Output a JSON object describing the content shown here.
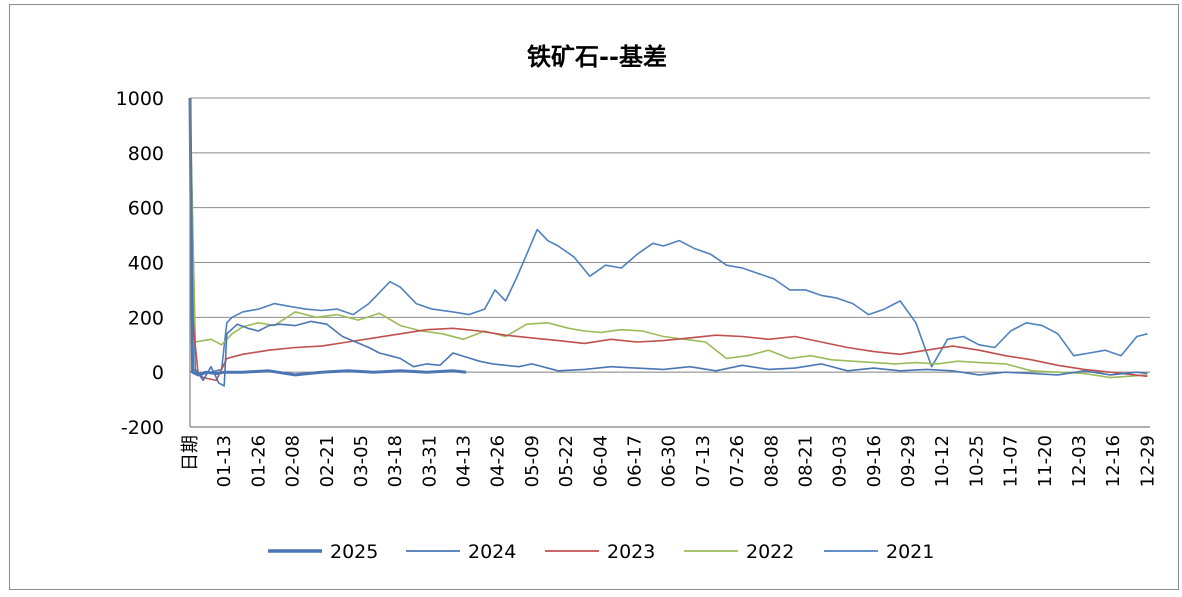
{
  "chart_data": {
    "type": "line",
    "title": "铁矿石--基差",
    "xlabel": "日期",
    "ylabel": "",
    "ylim": [
      -200,
      1000
    ],
    "yticks": [
      1000,
      800,
      600,
      400,
      200,
      0,
      -200
    ],
    "ytick_labels": [
      "1000",
      "800",
      "600",
      "400",
      "200",
      "0",
      "-200"
    ],
    "x_axis_label": "日期",
    "x_range": [
      0,
      365
    ],
    "x_tick_positions": [
      13,
      26,
      39,
      52,
      65,
      78,
      91,
      104,
      117,
      130,
      143,
      156,
      169,
      182,
      195,
      208,
      221,
      234,
      247,
      260,
      273,
      286,
      299,
      312,
      325,
      338,
      351,
      364
    ],
    "categories": [
      "01-13",
      "01-26",
      "02-08",
      "02-21",
      "03-05",
      "03-18",
      "03-31",
      "04-13",
      "04-26",
      "05-09",
      "05-22",
      "06-04",
      "06-17",
      "06-30",
      "07-13",
      "07-26",
      "08-08",
      "08-21",
      "09-03",
      "09-16",
      "09-29",
      "10-12",
      "10-25",
      "11-07",
      "11-20",
      "12-03",
      "12-16",
      "12-29"
    ],
    "grid": true,
    "legend_position": "bottom",
    "series": [
      {
        "name": "2025",
        "color": "#4a77b4",
        "bold": true,
        "x": [
          0,
          1,
          3,
          6,
          10,
          13,
          20,
          30,
          40,
          50,
          60,
          70,
          80,
          90,
          100,
          105
        ],
        "values": [
          1000,
          0,
          -10,
          0,
          -5,
          0,
          0,
          5,
          -10,
          0,
          5,
          0,
          5,
          0,
          5,
          0
        ]
      },
      {
        "name": "2024",
        "color": "#4a77b4",
        "bold": false,
        "x": [
          0,
          2,
          5,
          8,
          11,
          13,
          14,
          18,
          22,
          26,
          30,
          34,
          40,
          46,
          52,
          58,
          63,
          68,
          72,
          76,
          80,
          85,
          90,
          95,
          100,
          105,
          110,
          115,
          120,
          125,
          130,
          140,
          150,
          160,
          170,
          180,
          190,
          200,
          210,
          220,
          230,
          240,
          250,
          260,
          270,
          280,
          290,
          300,
          310,
          320,
          330,
          340,
          350,
          360,
          364
        ],
        "values": [
          0,
          10,
          -30,
          20,
          -40,
          -50,
          140,
          175,
          160,
          150,
          170,
          175,
          170,
          185,
          175,
          130,
          110,
          90,
          70,
          60,
          50,
          20,
          30,
          25,
          70,
          55,
          40,
          30,
          25,
          20,
          30,
          5,
          10,
          20,
          15,
          10,
          20,
          5,
          25,
          10,
          15,
          30,
          5,
          15,
          5,
          10,
          5,
          -10,
          0,
          -5,
          -10,
          5,
          -10,
          0,
          -5
        ]
      },
      {
        "name": "2023",
        "color": "#c0504d",
        "bold": false,
        "x": [
          0,
          1,
          3,
          5,
          10,
          14,
          20,
          30,
          40,
          50,
          60,
          70,
          80,
          90,
          100,
          110,
          120,
          130,
          140,
          150,
          160,
          170,
          180,
          190,
          200,
          210,
          220,
          230,
          240,
          250,
          260,
          270,
          280,
          290,
          300,
          310,
          320,
          330,
          340,
          350,
          364
        ],
        "values": [
          1000,
          200,
          0,
          -20,
          -30,
          50,
          65,
          80,
          90,
          95,
          110,
          125,
          140,
          155,
          160,
          150,
          135,
          125,
          115,
          105,
          120,
          110,
          115,
          125,
          135,
          130,
          120,
          130,
          110,
          90,
          75,
          65,
          80,
          95,
          80,
          60,
          45,
          25,
          10,
          0,
          -15
        ]
      },
      {
        "name": "2022",
        "color": "#9bbb59",
        "bold": false,
        "x": [
          0,
          2,
          5,
          8,
          12,
          16,
          20,
          26,
          32,
          40,
          48,
          56,
          64,
          72,
          80,
          88,
          96,
          104,
          112,
          120,
          128,
          136,
          144,
          150,
          156,
          164,
          172,
          180,
          188,
          196,
          204,
          212,
          220,
          228,
          236,
          244,
          252,
          260,
          268,
          276,
          284,
          292,
          300,
          310,
          320,
          330,
          340,
          350,
          364
        ],
        "values": [
          1000,
          110,
          115,
          120,
          100,
          140,
          165,
          180,
          170,
          220,
          200,
          210,
          190,
          215,
          170,
          150,
          140,
          120,
          150,
          130,
          175,
          180,
          160,
          150,
          145,
          155,
          150,
          130,
          120,
          110,
          50,
          60,
          80,
          50,
          60,
          45,
          40,
          35,
          30,
          35,
          30,
          40,
          35,
          30,
          5,
          0,
          -5,
          -20,
          -10
        ]
      },
      {
        "name": "2021",
        "color": "#4f81bd",
        "bold": false,
        "x": [
          0,
          2,
          4,
          8,
          12,
          14,
          16,
          20,
          26,
          32,
          38,
          44,
          50,
          56,
          62,
          68,
          72,
          76,
          80,
          86,
          92,
          100,
          106,
          112,
          116,
          120,
          124,
          128,
          132,
          136,
          140,
          146,
          152,
          158,
          164,
          170,
          176,
          180,
          186,
          192,
          198,
          204,
          210,
          216,
          222,
          228,
          234,
          240,
          246,
          252,
          258,
          264,
          270,
          276,
          282,
          288,
          294,
          300,
          306,
          312,
          318,
          324,
          330,
          336,
          342,
          348,
          354,
          360,
          364
        ],
        "values": [
          1000,
          0,
          -10,
          0,
          10,
          180,
          200,
          220,
          230,
          250,
          240,
          230,
          225,
          230,
          210,
          250,
          290,
          330,
          310,
          250,
          230,
          220,
          210,
          230,
          300,
          260,
          340,
          430,
          520,
          480,
          460,
          420,
          350,
          390,
          380,
          430,
          470,
          460,
          480,
          450,
          430,
          390,
          380,
          360,
          340,
          300,
          300,
          280,
          270,
          250,
          210,
          230,
          260,
          180,
          20,
          120,
          130,
          100,
          90,
          150,
          180,
          170,
          140,
          60,
          70,
          80,
          60,
          130,
          140
        ]
      }
    ]
  }
}
